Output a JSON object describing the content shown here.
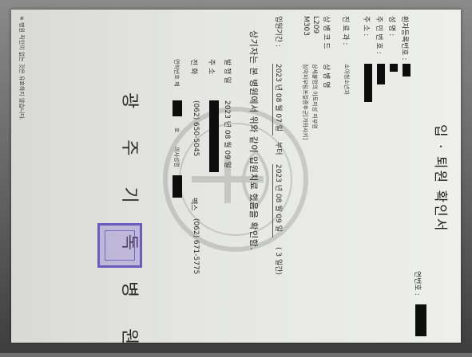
{
  "document": {
    "title": "입 · 퇴원 확인서",
    "serial_label": "연번호 :",
    "fields": {
      "patient_no_label": "환자등록번호 :",
      "name_label": "성 명 :",
      "id_no_label": "주 민 번 호 :",
      "address_label": "주 소 :",
      "department_label": "진 료 과 :",
      "department_value": "소아청소년과",
      "disease_code_label": "상 병 코 드",
      "disease_name_label": "상 병 명",
      "codes": [
        {
          "code": "L209",
          "name": "상세불명의 아토피성 피부염"
        },
        {
          "code": "M303",
          "name": "점막피부림프절증후군[가와사키]"
        }
      ]
    },
    "admission": {
      "label": "입원기간 :",
      "start": "2023 년 08 월 07 일",
      "middle": "부터",
      "end": "2023 년 08 월 09 일",
      "days": "( 3 일간)"
    },
    "confirmation": "상기자는 본 병원에서 위와 같이 입원치료 했음을 확인함.",
    "issue": {
      "date_label": "발 행 일",
      "date_value": "2023 년 08 월 09 일",
      "address_label": "주 소",
      "phone_label": "전 화",
      "phone_value": "(062) 650-5045",
      "fax_label": "팩스",
      "fax_value": "(062) 671-5775",
      "license_label": "면허번호 제",
      "license_suffix": "호",
      "doctor_label": "의사성명"
    },
    "hospital": "광 주 기 독 병 원",
    "footnote": "※ 병원 직인이 없는 것은 유효하지 않습니다."
  },
  "colors": {
    "paper": "#e6e7e3",
    "ink": "#2b2b2b",
    "redaction": "#0d0d0d",
    "seal": "#6b5bbf"
  }
}
